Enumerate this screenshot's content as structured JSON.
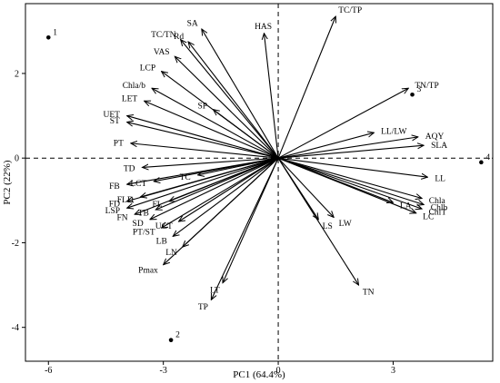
{
  "chart_data": {
    "type": "scatter",
    "subtype": "pca-biplot",
    "xlabel": "PC1 (64.4%)",
    "ylabel": "PC2 (22%)",
    "xlim": [
      -6.6,
      5.6
    ],
    "ylim": [
      -4.8,
      3.65
    ],
    "xticks": [
      -6,
      -3,
      0,
      3
    ],
    "yticks": [
      -4,
      -2,
      0,
      2
    ],
    "zero_lines": "dashed",
    "grid": false,
    "observations": [
      {
        "label": "1",
        "x": -6.0,
        "y": 2.85
      },
      {
        "label": "2",
        "x": -2.8,
        "y": -4.3
      },
      {
        "label": "3",
        "x": 3.5,
        "y": 1.5
      },
      {
        "label": "4",
        "x": 5.3,
        "y": -0.1
      }
    ],
    "loadings": [
      {
        "label": "TC/TP",
        "x": 1.5,
        "y": 3.35
      },
      {
        "label": "HAS",
        "x": -0.37,
        "y": 2.95
      },
      {
        "label": "SA",
        "x": -2.0,
        "y": 3.05
      },
      {
        "label": "Rd",
        "x": -2.35,
        "y": 2.75
      },
      {
        "label": "TC/TN",
        "x": -2.55,
        "y": 2.8
      },
      {
        "label": "VAS",
        "x": -2.7,
        "y": 2.4
      },
      {
        "label": "LCP",
        "x": -3.05,
        "y": 2.05
      },
      {
        "label": "Chla/b",
        "x": -3.3,
        "y": 1.65
      },
      {
        "label": "LET",
        "x": -3.5,
        "y": 1.35
      },
      {
        "label": "SP",
        "x": -1.7,
        "y": 1.15
      },
      {
        "label": "UET",
        "x": -3.95,
        "y": 1.0
      },
      {
        "label": "ST",
        "x": -3.95,
        "y": 0.85
      },
      {
        "label": "PT",
        "x": -3.85,
        "y": 0.35
      },
      {
        "label": "TN/TP",
        "x": 3.4,
        "y": 1.65
      },
      {
        "label": "LL/LW",
        "x": 2.5,
        "y": 0.6
      },
      {
        "label": "AQY",
        "x": 3.65,
        "y": 0.5
      },
      {
        "label": "SLA",
        "x": 3.8,
        "y": 0.3
      },
      {
        "label": "LL",
        "x": 3.9,
        "y": -0.45
      },
      {
        "label": "Chla",
        "x": 3.75,
        "y": -0.95
      },
      {
        "label": "Chlb",
        "x": 3.8,
        "y": -1.1
      },
      {
        "label": "LA",
        "x": 3.0,
        "y": -1.05
      },
      {
        "label": "ChlT",
        "x": 3.75,
        "y": -1.2
      },
      {
        "label": "LC",
        "x": 3.6,
        "y": -1.3
      },
      {
        "label": "LW",
        "x": 1.45,
        "y": -1.4
      },
      {
        "label": "LS",
        "x": 1.05,
        "y": -1.45
      },
      {
        "label": "TN",
        "x": 2.1,
        "y": -3.0
      },
      {
        "label": "TD",
        "x": -3.55,
        "y": -0.22
      },
      {
        "label": "TC",
        "x": -2.1,
        "y": -0.4
      },
      {
        "label": "LCT",
        "x": -3.25,
        "y": -0.55
      },
      {
        "label": "FB",
        "x": -3.95,
        "y": -0.62
      },
      {
        "label": "FLD",
        "x": -3.6,
        "y": -0.92
      },
      {
        "label": "FL",
        "x": -2.85,
        "y": -1.02
      },
      {
        "label": "FD",
        "x": -3.95,
        "y": -1.02
      },
      {
        "label": "TB",
        "x": -3.2,
        "y": -1.22
      },
      {
        "label": "LSP",
        "x": -3.95,
        "y": -1.18
      },
      {
        "label": "FN",
        "x": -3.75,
        "y": -1.33
      },
      {
        "label": "SD",
        "x": -3.35,
        "y": -1.45
      },
      {
        "label": "UCT",
        "x": -2.6,
        "y": -1.5
      },
      {
        "label": "PT/ST",
        "x": -3.05,
        "y": -1.65
      },
      {
        "label": "LB",
        "x": -2.75,
        "y": -1.85
      },
      {
        "label": "LN",
        "x": -2.5,
        "y": -2.1
      },
      {
        "label": "Pmax",
        "x": -3.0,
        "y": -2.52
      },
      {
        "label": "LT",
        "x": -1.45,
        "y": -2.95
      },
      {
        "label": "TP",
        "x": -1.75,
        "y": -3.35
      }
    ]
  }
}
